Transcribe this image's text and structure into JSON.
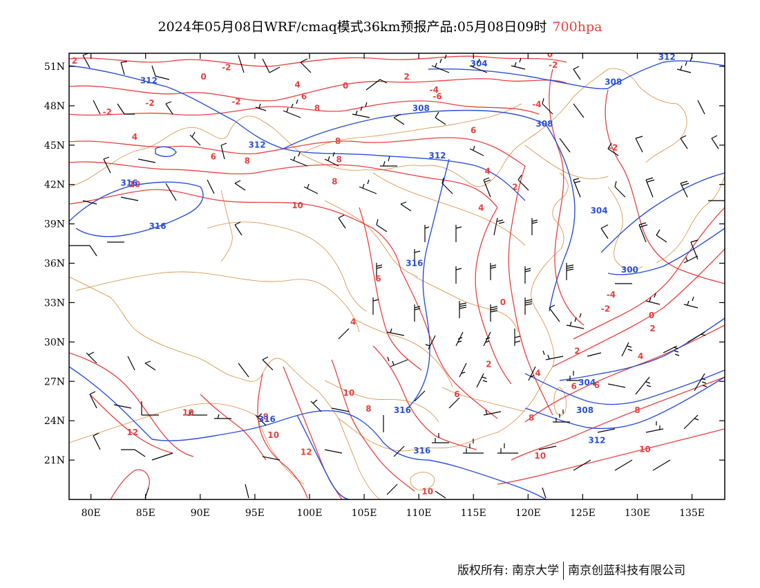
{
  "title": {
    "text": "2024年05月08日WRF/cmaq模式36km预报产品:05月08日09时",
    "level": "700hpa",
    "level_color": "#e8403e"
  },
  "axes": {
    "lon_labels": [
      "80E",
      "85E",
      "90E",
      "95E",
      "100E",
      "105E",
      "110E",
      "115E",
      "120E",
      "125E",
      "130E",
      "135E"
    ],
    "lon_values": [
      80,
      85,
      90,
      95,
      100,
      105,
      110,
      115,
      120,
      125,
      130,
      135
    ],
    "lat_labels": [
      "51N",
      "48N",
      "45N",
      "42N",
      "39N",
      "36N",
      "33N",
      "30N",
      "27N",
      "24N",
      "21N"
    ],
    "lat_values": [
      51,
      48,
      45,
      42,
      39,
      36,
      33,
      30,
      27,
      24,
      21
    ],
    "lon_range": [
      78,
      138
    ],
    "lat_range": [
      18,
      52
    ]
  },
  "colors": {
    "temperature_contour": "#e8403e",
    "height_contour": "#2a4fd8",
    "boundary": "#d9893a",
    "wind_barb": "#000000"
  },
  "temperature_labels": [
    {
      "text": "2",
      "lon": 78.5,
      "lat": 51.2
    },
    {
      "text": "0",
      "lon": 90.3,
      "lat": 50.0
    },
    {
      "text": "-2",
      "lon": 92.4,
      "lat": 50.7
    },
    {
      "text": "-2",
      "lon": 85.4,
      "lat": 48.0
    },
    {
      "text": "-2",
      "lon": 81.5,
      "lat": 47.3
    },
    {
      "text": "-2",
      "lon": 93.3,
      "lat": 48.1
    },
    {
      "text": "4",
      "lon": 84.0,
      "lat": 45.4
    },
    {
      "text": "6",
      "lon": 91.2,
      "lat": 43.9
    },
    {
      "text": "8",
      "lon": 94.3,
      "lat": 43.6
    },
    {
      "text": "10",
      "lon": 84.0,
      "lat": 41.8
    },
    {
      "text": "10",
      "lon": 98.9,
      "lat": 40.2
    },
    {
      "text": "8",
      "lon": 102.3,
      "lat": 42.0
    },
    {
      "text": "4",
      "lon": 98.9,
      "lat": 49.4
    },
    {
      "text": "6",
      "lon": 99.5,
      "lat": 48.5
    },
    {
      "text": "8",
      "lon": 100.7,
      "lat": 47.6
    },
    {
      "text": "0",
      "lon": 103.3,
      "lat": 49.3
    },
    {
      "text": "2",
      "lon": 108.9,
      "lat": 50.0
    },
    {
      "text": "-4",
      "lon": 111.4,
      "lat": 49.0
    },
    {
      "text": "-6",
      "lon": 111.7,
      "lat": 48.5
    },
    {
      "text": "8",
      "lon": 102.6,
      "lat": 45.1
    },
    {
      "text": "8",
      "lon": 102.7,
      "lat": 43.7
    },
    {
      "text": "6",
      "lon": 115.0,
      "lat": 45.9
    },
    {
      "text": "0",
      "lon": 122.0,
      "lat": 51.7
    },
    {
      "text": "-2",
      "lon": 122.3,
      "lat": 50.9
    },
    {
      "text": "-4",
      "lon": 120.8,
      "lat": 47.9
    },
    {
      "text": "-2",
      "lon": 127.8,
      "lat": 44.6
    },
    {
      "text": "4",
      "lon": 116.3,
      "lat": 42.8
    },
    {
      "text": "2",
      "lon": 118.8,
      "lat": 41.6
    },
    {
      "text": "4",
      "lon": 115.7,
      "lat": 40.0
    },
    {
      "text": "6",
      "lon": 106.3,
      "lat": 34.6
    },
    {
      "text": "4",
      "lon": 104.0,
      "lat": 31.3
    },
    {
      "text": "0",
      "lon": 117.7,
      "lat": 32.8
    },
    {
      "text": "2",
      "lon": 116.4,
      "lat": 28.1
    },
    {
      "text": "4",
      "lon": 120.9,
      "lat": 27.4
    },
    {
      "text": "6",
      "lon": 124.2,
      "lat": 26.4
    },
    {
      "text": "6",
      "lon": 126.3,
      "lat": 26.5
    },
    {
      "text": "6",
      "lon": 113.5,
      "lat": 25.8
    },
    {
      "text": "8",
      "lon": 105.4,
      "lat": 24.7
    },
    {
      "text": "8",
      "lon": 96.0,
      "lat": 24.1
    },
    {
      "text": "10",
      "lon": 103.6,
      "lat": 25.9
    },
    {
      "text": "10",
      "lon": 88.9,
      "lat": 24.4
    },
    {
      "text": "10",
      "lon": 96.7,
      "lat": 22.7
    },
    {
      "text": "12",
      "lon": 83.8,
      "lat": 22.9
    },
    {
      "text": "12",
      "lon": 99.7,
      "lat": 21.4
    },
    {
      "text": "8",
      "lon": 120.3,
      "lat": 24.0
    },
    {
      "text": "10",
      "lon": 121.1,
      "lat": 21.1
    },
    {
      "text": "10",
      "lon": 110.8,
      "lat": 18.4
    },
    {
      "text": "8",
      "lon": 130.0,
      "lat": 24.6
    },
    {
      "text": "10",
      "lon": 130.7,
      "lat": 21.6
    },
    {
      "text": "2",
      "lon": 124.5,
      "lat": 29.1
    },
    {
      "text": "4",
      "lon": 130.3,
      "lat": 28.7
    },
    {
      "text": "2",
      "lon": 131.4,
      "lat": 30.8
    },
    {
      "text": "0",
      "lon": 131.3,
      "lat": 31.8
    },
    {
      "text": "-2",
      "lon": 127.1,
      "lat": 32.3
    },
    {
      "text": "-4",
      "lon": 127.6,
      "lat": 33.4
    }
  ],
  "height_labels": [
    {
      "text": "312",
      "lon": 85.3,
      "lat": 49.7
    },
    {
      "text": "304",
      "lon": 115.5,
      "lat": 51.0
    },
    {
      "text": "308",
      "lon": 110.2,
      "lat": 47.6
    },
    {
      "text": "308",
      "lon": 121.5,
      "lat": 46.4
    },
    {
      "text": "308",
      "lon": 127.8,
      "lat": 49.6
    },
    {
      "text": "312",
      "lon": 95.2,
      "lat": 44.8
    },
    {
      "text": "312",
      "lon": 111.7,
      "lat": 44.0
    },
    {
      "text": "316",
      "lon": 83.5,
      "lat": 41.9
    },
    {
      "text": "316",
      "lon": 86.1,
      "lat": 38.6
    },
    {
      "text": "304",
      "lon": 126.5,
      "lat": 39.8
    },
    {
      "text": "300",
      "lon": 129.3,
      "lat": 35.3
    },
    {
      "text": "316",
      "lon": 109.6,
      "lat": 35.8
    },
    {
      "text": "316",
      "lon": 96.1,
      "lat": 23.9
    },
    {
      "text": "316",
      "lon": 108.5,
      "lat": 24.6
    },
    {
      "text": "316",
      "lon": 110.3,
      "lat": 21.5
    },
    {
      "text": "304",
      "lon": 125.4,
      "lat": 26.7
    },
    {
      "text": "308",
      "lon": 125.2,
      "lat": 24.6
    },
    {
      "text": "312",
      "lon": 126.3,
      "lat": 22.3
    },
    {
      "text": "312",
      "lon": 132.7,
      "lat": 51.5
    }
  ],
  "copyright": {
    "left": "版权所有: 南京大学",
    "right": "南京创蓝科技有限公司"
  }
}
